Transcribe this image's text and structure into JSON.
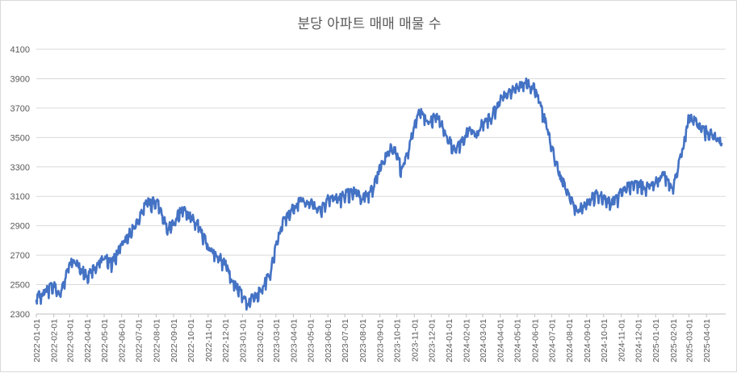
{
  "chart_data": {
    "type": "line",
    "title": "분당 아파트 매매 매물 수",
    "ylim": [
      2300,
      4100
    ],
    "yticks": [
      2300,
      2500,
      2700,
      2900,
      3100,
      3300,
      3500,
      3700,
      3900,
      4100
    ],
    "categories": [
      "2022-01-01",
      "2022-02-01",
      "2022-03-01",
      "2022-04-01",
      "2022-05-01",
      "2022-06-01",
      "2022-07-01",
      "2022-08-01",
      "2022-09-01",
      "2022-10-01",
      "2022-11-01",
      "2022-12-01",
      "2023-01-01",
      "2023-02-01",
      "2023-03-01",
      "2023-04-01",
      "2023-05-01",
      "2023-06-01",
      "2023-07-01",
      "2023-08-01",
      "2023-09-01",
      "2023-10-01",
      "2023-11-01",
      "2023-12-01",
      "2024-01-01",
      "2024-02-01",
      "2024-03-01",
      "2024-04-01",
      "2024-05-01",
      "2024-06-01",
      "2024-07-01",
      "2024-08-01",
      "2024-09-01",
      "2024-10-01",
      "2024-11-01",
      "2024-12-01",
      "2025-01-01",
      "2025-02-01",
      "2025-03-01",
      "2025-04-01"
    ],
    "anchors": [
      [
        "2022-01-01",
        2420
      ],
      [
        "2022-01-20",
        2470
      ],
      [
        "2022-02-01",
        2510
      ],
      [
        "2022-02-10",
        2430
      ],
      [
        "2022-02-25",
        2600
      ],
      [
        "2022-03-05",
        2680
      ],
      [
        "2022-03-20",
        2620
      ],
      [
        "2022-04-01",
        2560
      ],
      [
        "2022-04-20",
        2650
      ],
      [
        "2022-05-01",
        2690
      ],
      [
        "2022-05-15",
        2660
      ],
      [
        "2022-06-01",
        2780
      ],
      [
        "2022-06-20",
        2880
      ],
      [
        "2022-07-01",
        2950
      ],
      [
        "2022-07-15",
        3060
      ],
      [
        "2022-08-01",
        3080
      ],
      [
        "2022-08-10",
        3010
      ],
      [
        "2022-08-20",
        2880
      ],
      [
        "2022-09-01",
        2930
      ],
      [
        "2022-09-15",
        3020
      ],
      [
        "2022-10-01",
        2960
      ],
      [
        "2022-10-15",
        2920
      ],
      [
        "2022-11-01",
        2760
      ],
      [
        "2022-11-20",
        2700
      ],
      [
        "2022-12-01",
        2650
      ],
      [
        "2022-12-15",
        2520
      ],
      [
        "2023-01-01",
        2440
      ],
      [
        "2023-01-10",
        2380
      ],
      [
        "2023-01-25",
        2440
      ],
      [
        "2023-02-05",
        2480
      ],
      [
        "2023-02-20",
        2600
      ],
      [
        "2023-03-01",
        2780
      ],
      [
        "2023-03-15",
        2950
      ],
      [
        "2023-04-01",
        3030
      ],
      [
        "2023-04-15",
        3090
      ],
      [
        "2023-05-01",
        3060
      ],
      [
        "2023-05-20",
        3020
      ],
      [
        "2023-06-01",
        3100
      ],
      [
        "2023-06-20",
        3090
      ],
      [
        "2023-07-01",
        3120
      ],
      [
        "2023-07-20",
        3140
      ],
      [
        "2023-08-01",
        3100
      ],
      [
        "2023-08-20",
        3160
      ],
      [
        "2023-09-01",
        3300
      ],
      [
        "2023-09-20",
        3440
      ],
      [
        "2023-10-01",
        3400
      ],
      [
        "2023-10-10",
        3280
      ],
      [
        "2023-10-25",
        3470
      ],
      [
        "2023-11-05",
        3650
      ],
      [
        "2023-11-15",
        3680
      ],
      [
        "2023-11-25",
        3600
      ],
      [
        "2023-12-10",
        3660
      ],
      [
        "2024-01-01",
        3500
      ],
      [
        "2024-01-10",
        3420
      ],
      [
        "2024-01-25",
        3480
      ],
      [
        "2024-02-05",
        3560
      ],
      [
        "2024-02-20",
        3520
      ],
      [
        "2024-03-01",
        3620
      ],
      [
        "2024-03-15",
        3640
      ],
      [
        "2024-04-01",
        3760
      ],
      [
        "2024-04-15",
        3820
      ],
      [
        "2024-05-01",
        3850
      ],
      [
        "2024-05-15",
        3880
      ],
      [
        "2024-06-01",
        3850
      ],
      [
        "2024-06-15",
        3680
      ],
      [
        "2024-07-01",
        3450
      ],
      [
        "2024-07-15",
        3250
      ],
      [
        "2024-08-01",
        3110
      ],
      [
        "2024-08-15",
        3010
      ],
      [
        "2024-09-01",
        3060
      ],
      [
        "2024-09-15",
        3120
      ],
      [
        "2024-10-01",
        3100
      ],
      [
        "2024-10-15",
        3060
      ],
      [
        "2024-11-01",
        3130
      ],
      [
        "2024-11-15",
        3180
      ],
      [
        "2024-12-01",
        3190
      ],
      [
        "2024-12-15",
        3170
      ],
      [
        "2025-01-01",
        3200
      ],
      [
        "2025-01-15",
        3260
      ],
      [
        "2025-02-01",
        3150
      ],
      [
        "2025-02-10",
        3320
      ],
      [
        "2025-02-20",
        3460
      ],
      [
        "2025-03-01",
        3650
      ],
      [
        "2025-03-10",
        3620
      ],
      [
        "2025-03-20",
        3580
      ],
      [
        "2025-04-01",
        3550
      ],
      [
        "2025-04-15",
        3510
      ],
      [
        "2025-04-25",
        3480
      ]
    ],
    "series": [
      {
        "color": "#4472C4"
      }
    ],
    "grid": true,
    "legend": "none"
  }
}
